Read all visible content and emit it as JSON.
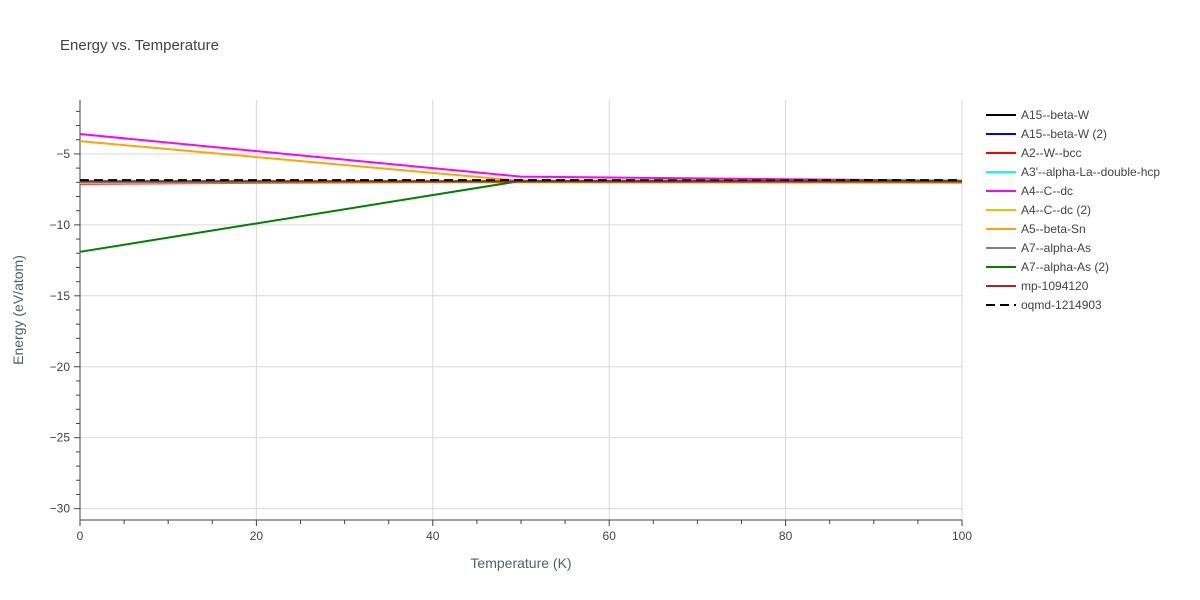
{
  "chart_data": {
    "type": "line",
    "title": "Energy vs. Temperature",
    "xlabel": "Temperature (K)",
    "ylabel": "Energy (eV/atom)",
    "xlim": [
      0,
      100
    ],
    "ylim": [
      -30.8,
      -1.2
    ],
    "xticks": [
      0,
      20,
      40,
      60,
      80,
      100
    ],
    "yticks": [
      -30,
      -25,
      -20,
      -15,
      -10,
      -5
    ],
    "xtick_labels": [
      "0",
      "20",
      "40",
      "60",
      "80",
      "100"
    ],
    "ytick_labels": [
      "−30",
      "−25",
      "−20",
      "−15",
      "−10",
      "−5"
    ],
    "grid": true,
    "legend_position": "right",
    "series": [
      {
        "name": "A15--beta-W",
        "color": "#000000",
        "dash": "solid",
        "x": [
          0,
          50,
          100
        ],
        "y": [
          -6.95,
          -6.95,
          -6.95
        ]
      },
      {
        "name": "A15--beta-W (2)",
        "color": "#0000ff",
        "dash": "solid",
        "x": [
          0,
          50,
          100
        ],
        "y": [
          -6.97,
          -6.97,
          -6.97
        ]
      },
      {
        "name": "A2--W--bcc",
        "color": "#ff0000",
        "dash": "solid",
        "x": [
          0,
          50,
          100
        ],
        "y": [
          -7.1,
          -6.95,
          -6.95
        ]
      },
      {
        "name": "A3'--alpha-La--double-hcp",
        "color": "#00ffff",
        "dash": "solid",
        "x": [
          0,
          50,
          100
        ],
        "y": [
          -7.05,
          -6.95,
          -6.95
        ]
      },
      {
        "name": "A4--C--dc",
        "color": "#ff00ff",
        "dash": "solid",
        "x": [
          0,
          50,
          100
        ],
        "y": [
          -3.6,
          -6.6,
          -6.9
        ]
      },
      {
        "name": "A4--C--dc (2)",
        "color": "#f0c000",
        "dash": "solid",
        "x": [
          0,
          50,
          100
        ],
        "y": [
          -6.95,
          -7.0,
          -7.05
        ]
      },
      {
        "name": "A5--beta-Sn",
        "color": "#ffa500",
        "dash": "solid",
        "x": [
          0,
          50,
          100
        ],
        "y": [
          -4.1,
          -6.9,
          -6.95
        ]
      },
      {
        "name": "A7--alpha-As",
        "color": "#808080",
        "dash": "solid",
        "x": [
          0,
          50,
          100
        ],
        "y": [
          -6.9,
          -6.9,
          -6.9
        ]
      },
      {
        "name": "A7--alpha-As (2)",
        "color": "#008000",
        "dash": "solid",
        "x": [
          0,
          50,
          100
        ],
        "y": [
          -11.9,
          -6.9,
          -6.9
        ]
      },
      {
        "name": "mp-1094120",
        "color": "#b22222",
        "dash": "solid",
        "x": [
          0,
          50,
          100
        ],
        "y": [
          -6.95,
          -6.95,
          -6.95
        ]
      },
      {
        "name": "oqmd-1214903",
        "color": "#000000",
        "dash": "dash",
        "x": [
          0,
          50,
          100
        ],
        "y": [
          -6.85,
          -6.85,
          -6.85
        ]
      }
    ]
  }
}
